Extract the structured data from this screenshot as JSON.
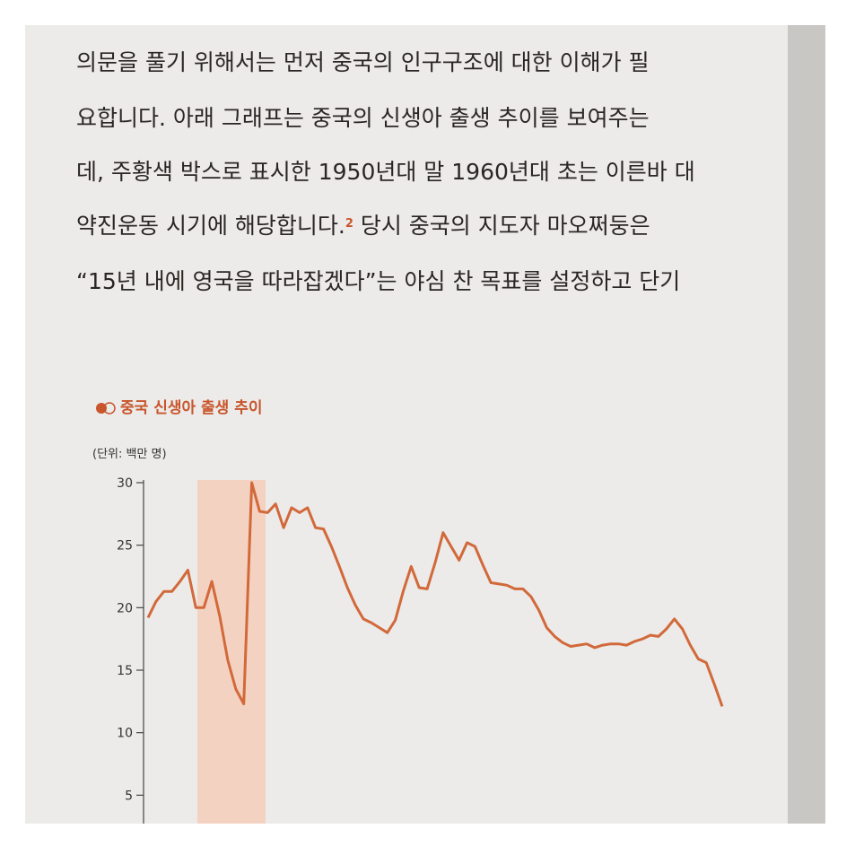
{
  "paragraph": {
    "lines": [
      [
        "의문을 풀기 위해서는 먼저 중국의 인구구조에 대한 이해가 필"
      ],
      [
        "요합니다. 아래 그래프는 중국의 신생아 출생 추이를 보여주는"
      ],
      [
        "데, 주황색 박스로 표시한 1950년대 말 1960년대 초는 이른바 대"
      ],
      [
        "약진운동 시기에 해당합니다.",
        "2",
        " 당시 중국의 지도자 마오쩌둥은"
      ],
      [
        "“15년 내에 영국을 따라잡겠다”는 야심 찬 목표를 설정하고 단기"
      ]
    ]
  },
  "chart_data": {
    "type": "line",
    "title": "중국 신생아 출생 추이",
    "unit_label": "(단위: 백만 명)",
    "color": "#d2693a",
    "values": [
      19.2,
      20.5,
      21.3,
      21.3,
      22.1,
      23.0,
      20.0,
      20.0,
      22.1,
      19.3,
      15.8,
      13.5,
      12.3,
      30.0,
      27.7,
      27.6,
      28.3,
      26.4,
      28.0,
      27.6,
      28.0,
      26.4,
      26.3,
      24.9,
      23.3,
      21.6,
      20.2,
      19.1,
      18.8,
      18.4,
      18.0,
      19.0,
      21.3,
      23.3,
      21.6,
      21.5,
      23.6,
      26.0,
      24.9,
      23.8,
      25.2,
      24.9,
      23.4,
      22.0,
      21.9,
      21.8,
      21.5,
      21.5,
      20.9,
      19.8,
      18.4,
      17.7,
      17.2,
      16.9,
      17.0,
      17.1,
      16.8,
      17.0,
      17.1,
      17.1,
      17.0,
      17.3,
      17.5,
      17.8,
      17.7,
      18.3,
      19.1,
      18.3,
      17.0,
      15.9,
      15.6,
      13.9,
      12.1
    ],
    "ylim": [
      0,
      30
    ],
    "yticks": [
      5,
      10,
      15,
      20,
      25,
      30
    ]
  }
}
